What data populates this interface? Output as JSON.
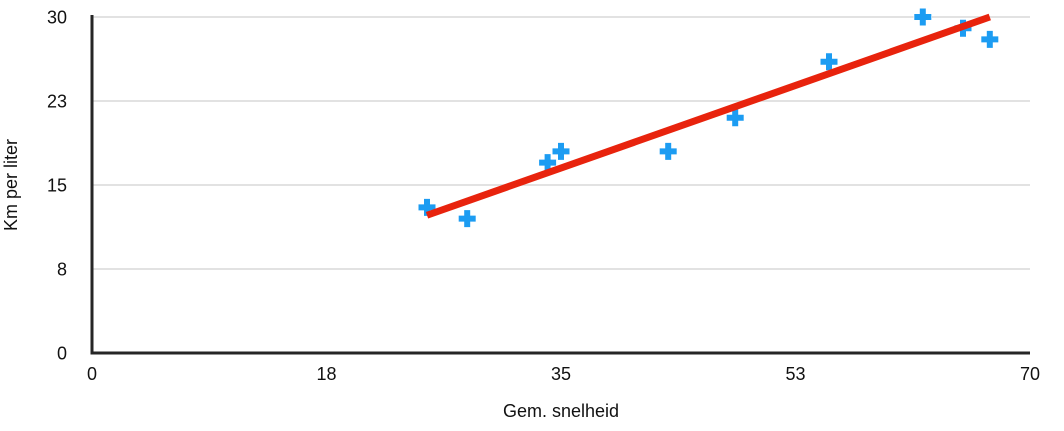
{
  "chart_data": {
    "type": "scatter",
    "title": "",
    "xlabel": "Gem. snelheid",
    "ylabel": "Km per liter",
    "xlim": [
      0,
      70
    ],
    "ylim": [
      0,
      30
    ],
    "grid": "horizontal",
    "legend": "none",
    "x_ticks": [
      {
        "value": 0,
        "label": "0"
      },
      {
        "value": 17.5,
        "label": "18"
      },
      {
        "value": 35,
        "label": "35"
      },
      {
        "value": 52.5,
        "label": "53"
      },
      {
        "value": 70,
        "label": "70"
      }
    ],
    "y_ticks": [
      {
        "value": 0,
        "label": "0"
      },
      {
        "value": 7.5,
        "label": "8"
      },
      {
        "value": 15,
        "label": "15"
      },
      {
        "value": 22.5,
        "label": "23"
      },
      {
        "value": 30,
        "label": "30"
      }
    ],
    "series": [
      {
        "name": "data-points",
        "marker": "plus",
        "color": "#1C9CF2",
        "points": [
          [
            25,
            13
          ],
          [
            28,
            12
          ],
          [
            34,
            17
          ],
          [
            35,
            18
          ],
          [
            43,
            18
          ],
          [
            48,
            21
          ],
          [
            55,
            26
          ],
          [
            62,
            30
          ],
          [
            65,
            29
          ],
          [
            67,
            28
          ]
        ]
      }
    ],
    "trendline": {
      "color": "#E8230D",
      "from": [
        25,
        12.3
      ],
      "to": [
        67,
        30
      ]
    }
  },
  "colors": {
    "marker_blue": "#1C9CF2",
    "trend_red": "#E8230D",
    "gridline_gray": "#D8D8D8",
    "axis_dark": "#262626",
    "text_dark": "#111111",
    "background": "#ffffff"
  }
}
